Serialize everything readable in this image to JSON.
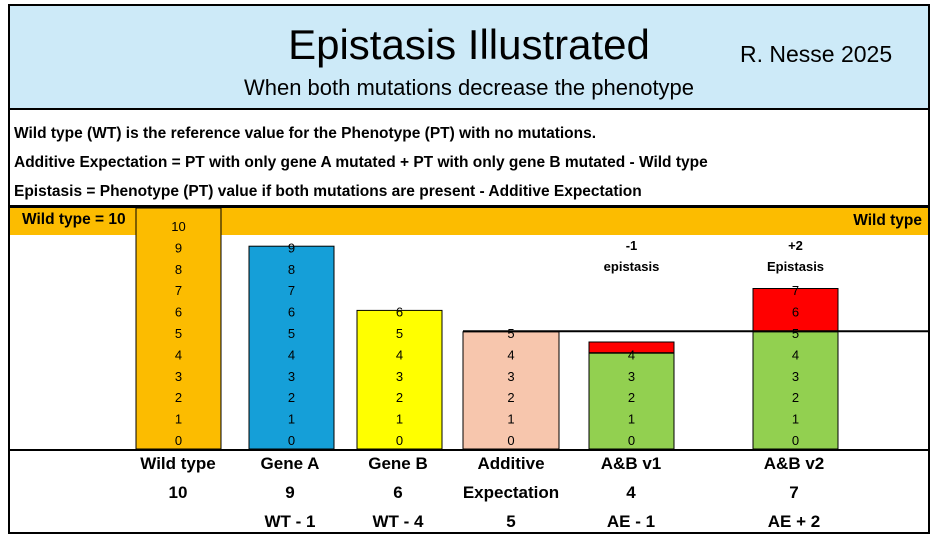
{
  "header": {
    "title": "Epistasis Illustrated",
    "author": "R. Nesse 2025",
    "subtitle": "When both mutations decrease the phenotype"
  },
  "definitions": [
    "Wild type (WT) is the reference value for the Phenotype (PT) with no mutations.",
    "Additive Expectation = PT with only gene A mutated + PT with only gene B mutated - Wild type",
    "Epistasis = Phenotype (PT) value if both mutations are present - Additive Expectation"
  ],
  "wild_type_band": {
    "left_label": "Wild type = 10",
    "right_label": "Wild type"
  },
  "colors": {
    "wild_type": "#fcbc00",
    "gene_a": "#159fd8",
    "gene_b": "#ffff00",
    "additive": "#f7c6ad",
    "combined": "#92d050",
    "epistasis": "#ff0000",
    "header_bg": "#cdeaf8"
  },
  "chart_data": {
    "type": "bar",
    "title": "Epistasis Illustrated",
    "ylim": [
      0,
      10
    ],
    "categories": [
      "Wild type",
      "Gene A",
      "Gene B",
      "Additive Expectation",
      "A&B v1",
      "A&B v2"
    ],
    "values": [
      10,
      9,
      6,
      5,
      4,
      7
    ],
    "additive_expectation": 5,
    "bars": [
      {
        "name": "Wild type",
        "value": 10,
        "color_key": "wild_type",
        "tick_labels": [
          "0",
          "1",
          "2",
          "3",
          "4",
          "5",
          "6",
          "7",
          "8",
          "9",
          "10"
        ]
      },
      {
        "name": "Gene A",
        "value": 9,
        "color_key": "gene_a",
        "tick_labels": [
          "0",
          "1",
          "2",
          "3",
          "4",
          "5",
          "6",
          "7",
          "8",
          "9"
        ]
      },
      {
        "name": "Gene B",
        "value": 6,
        "color_key": "gene_b",
        "tick_labels": [
          "0",
          "1",
          "2",
          "3",
          "4",
          "5",
          "6"
        ]
      },
      {
        "name": "Additive Expectation",
        "value": 5,
        "color_key": "additive",
        "tick_labels": [
          "0",
          "1",
          "2",
          "3",
          "4",
          "5"
        ]
      },
      {
        "name": "A&B v1",
        "value": 4,
        "color_key": "combined",
        "tick_labels": [
          "0",
          "1",
          "2",
          "3",
          "4"
        ],
        "epistasis": {
          "from": 4,
          "to": 5,
          "color_key": "epistasis",
          "amount": "-1",
          "label": "epistasis"
        }
      },
      {
        "name": "A&B v2",
        "value": 7,
        "color_key": "combined",
        "base_top": 5,
        "tick_labels": [
          "0",
          "1",
          "2",
          "3",
          "4",
          "5",
          "6",
          "7"
        ],
        "epistasis": {
          "from": 5,
          "to": 7,
          "color_key": "epistasis",
          "amount": "+2",
          "label": "Epistasis"
        }
      }
    ]
  },
  "columns": [
    {
      "name": "Wild type",
      "value": "10",
      "formula": ""
    },
    {
      "name": "Gene A",
      "value": "9",
      "formula": "WT - 1"
    },
    {
      "name": "Gene B",
      "value": "6",
      "formula": "WT - 4"
    },
    {
      "name": "Additive",
      "value": "Expectation",
      "formula": "5"
    },
    {
      "name": "A&B v1",
      "value": "4",
      "formula": "AE - 1"
    },
    {
      "name": "A&B v2",
      "value": "7",
      "formula": "AE + 2"
    }
  ]
}
